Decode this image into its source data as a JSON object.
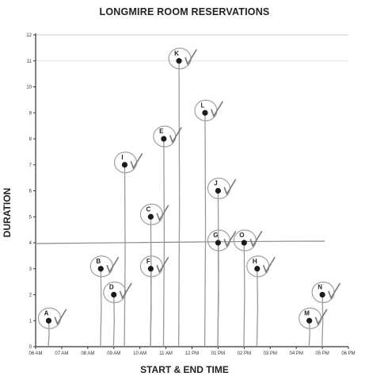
{
  "chart_data": {
    "type": "scatter",
    "title": "LONGMIRE ROOM RESERVATIONS",
    "xlabel": "START & END TIME",
    "ylabel": "DURATION",
    "x_ticks": [
      "06 AM",
      "07 AM",
      "08 AM",
      "09 AM",
      "10 AM",
      "11 AM",
      "12 PM",
      "01 PM",
      "02 PM",
      "03 PM",
      "04 PM",
      "05 PM",
      "06 PM"
    ],
    "y_ticks": [
      "0",
      "1",
      "2",
      "3",
      "4",
      "5",
      "6",
      "7",
      "8",
      "9",
      "10",
      "11",
      "12"
    ],
    "xlim": [
      "06:00",
      "18:00"
    ],
    "ylim": [
      0,
      12
    ],
    "grid": false,
    "reference_line_y": 4,
    "points": [
      {
        "label": "A",
        "x": "06:30",
        "y": 1
      },
      {
        "label": "B",
        "x": "08:30",
        "y": 3
      },
      {
        "label": "D",
        "x": "09:00",
        "y": 2
      },
      {
        "label": "I",
        "x": "09:25",
        "y": 7
      },
      {
        "label": "C",
        "x": "10:25",
        "y": 5
      },
      {
        "label": "F",
        "x": "10:25",
        "y": 3
      },
      {
        "label": "E",
        "x": "10:55",
        "y": 8
      },
      {
        "label": "K",
        "x": "11:30",
        "y": 11
      },
      {
        "label": "L",
        "x": "12:30",
        "y": 9
      },
      {
        "label": "J",
        "x": "13:00",
        "y": 6
      },
      {
        "label": "G",
        "x": "13:00",
        "y": 4
      },
      {
        "label": "O",
        "x": "14:00",
        "y": 4
      },
      {
        "label": "H",
        "x": "14:30",
        "y": 3
      },
      {
        "label": "M",
        "x": "16:30",
        "y": 1
      },
      {
        "label": "N",
        "x": "17:00",
        "y": 2
      }
    ]
  }
}
